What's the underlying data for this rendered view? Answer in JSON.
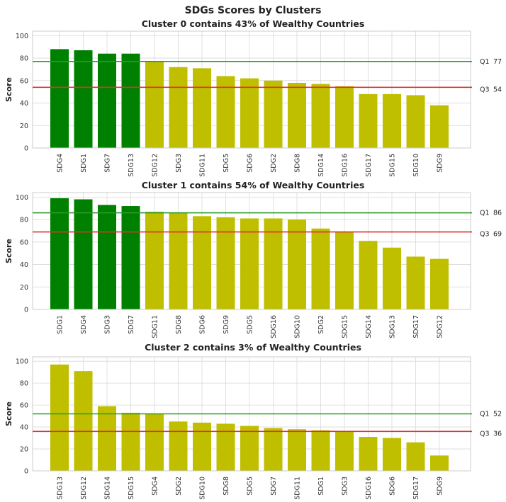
{
  "figure": {
    "suptitle": "SDGs Scores by Clusters"
  },
  "colors": {
    "top": "#008000",
    "rest": "#bfbf00",
    "q1_line": "#2a9a2a",
    "q3_line": "#e03030",
    "grid": "#d8d8d8",
    "frame": "#cccccc"
  },
  "chart_data": [
    {
      "type": "bar",
      "title": "Cluster 0 contains 43% of Wealthy Countries",
      "ylabel": "Score",
      "ylim": [
        0,
        104
      ],
      "yticks": [
        0,
        20,
        40,
        60,
        80,
        100
      ],
      "categories": [
        "SDG4",
        "SDG1",
        "SDG7",
        "SDG13",
        "SDG12",
        "SDG3",
        "SDG11",
        "SDG5",
        "SDG6",
        "SDG2",
        "SDG8",
        "SDG14",
        "SDG16",
        "SDG17",
        "SDG15",
        "SDG10",
        "SDG9"
      ],
      "values": [
        88,
        87,
        84,
        84,
        77,
        72,
        71,
        64,
        62,
        60,
        58,
        57,
        55,
        48,
        48,
        47,
        38
      ],
      "highlight_count": 4,
      "q1": {
        "label": "Q1",
        "value": 77,
        "value_text": "77"
      },
      "q3": {
        "label": "Q3",
        "value": 54,
        "value_text": "54"
      }
    },
    {
      "type": "bar",
      "title": "Cluster 1 contains 54% of Wealthy Countries",
      "ylabel": "Score",
      "ylim": [
        0,
        104
      ],
      "yticks": [
        0,
        20,
        40,
        60,
        80,
        100
      ],
      "categories": [
        "SDG1",
        "SDG4",
        "SDG3",
        "SDG7",
        "SDG11",
        "SDG8",
        "SDG6",
        "SDG9",
        "SDG5",
        "SDG16",
        "SDG10",
        "SDG2",
        "SDG15",
        "SDG14",
        "SDG13",
        "SDG17",
        "SDG12"
      ],
      "values": [
        99,
        98,
        93,
        92,
        87,
        86,
        83,
        82,
        81,
        81,
        80,
        72,
        69,
        61,
        55,
        47,
        45
      ],
      "highlight_count": 4,
      "q1": {
        "label": "Q1",
        "value": 86,
        "value_text": "86"
      },
      "q3": {
        "label": "Q3",
        "value": 69,
        "value_text": "69"
      }
    },
    {
      "type": "bar",
      "title": "Cluster 2 contains 3% of Wealthy Countries",
      "ylabel": "Score",
      "ylim": [
        0,
        104
      ],
      "yticks": [
        0,
        20,
        40,
        60,
        80,
        100
      ],
      "categories": [
        "SDG13",
        "SDG12",
        "SDG14",
        "SDG15",
        "SDG4",
        "SDG2",
        "SDG10",
        "SDG8",
        "SDG5",
        "SDG7",
        "SDG11",
        "SDG1",
        "SDG3",
        "SDG16",
        "SDG6",
        "SDG17",
        "SDG9"
      ],
      "values": [
        97,
        91,
        59,
        53,
        52,
        45,
        44,
        43,
        41,
        39,
        38,
        37,
        36,
        31,
        30,
        26,
        14
      ],
      "highlight_count": 0,
      "q1": {
        "label": "Q1",
        "value": 52,
        "value_text": "52"
      },
      "q3": {
        "label": "Q3",
        "value": 36,
        "value_text": "36"
      }
    }
  ]
}
